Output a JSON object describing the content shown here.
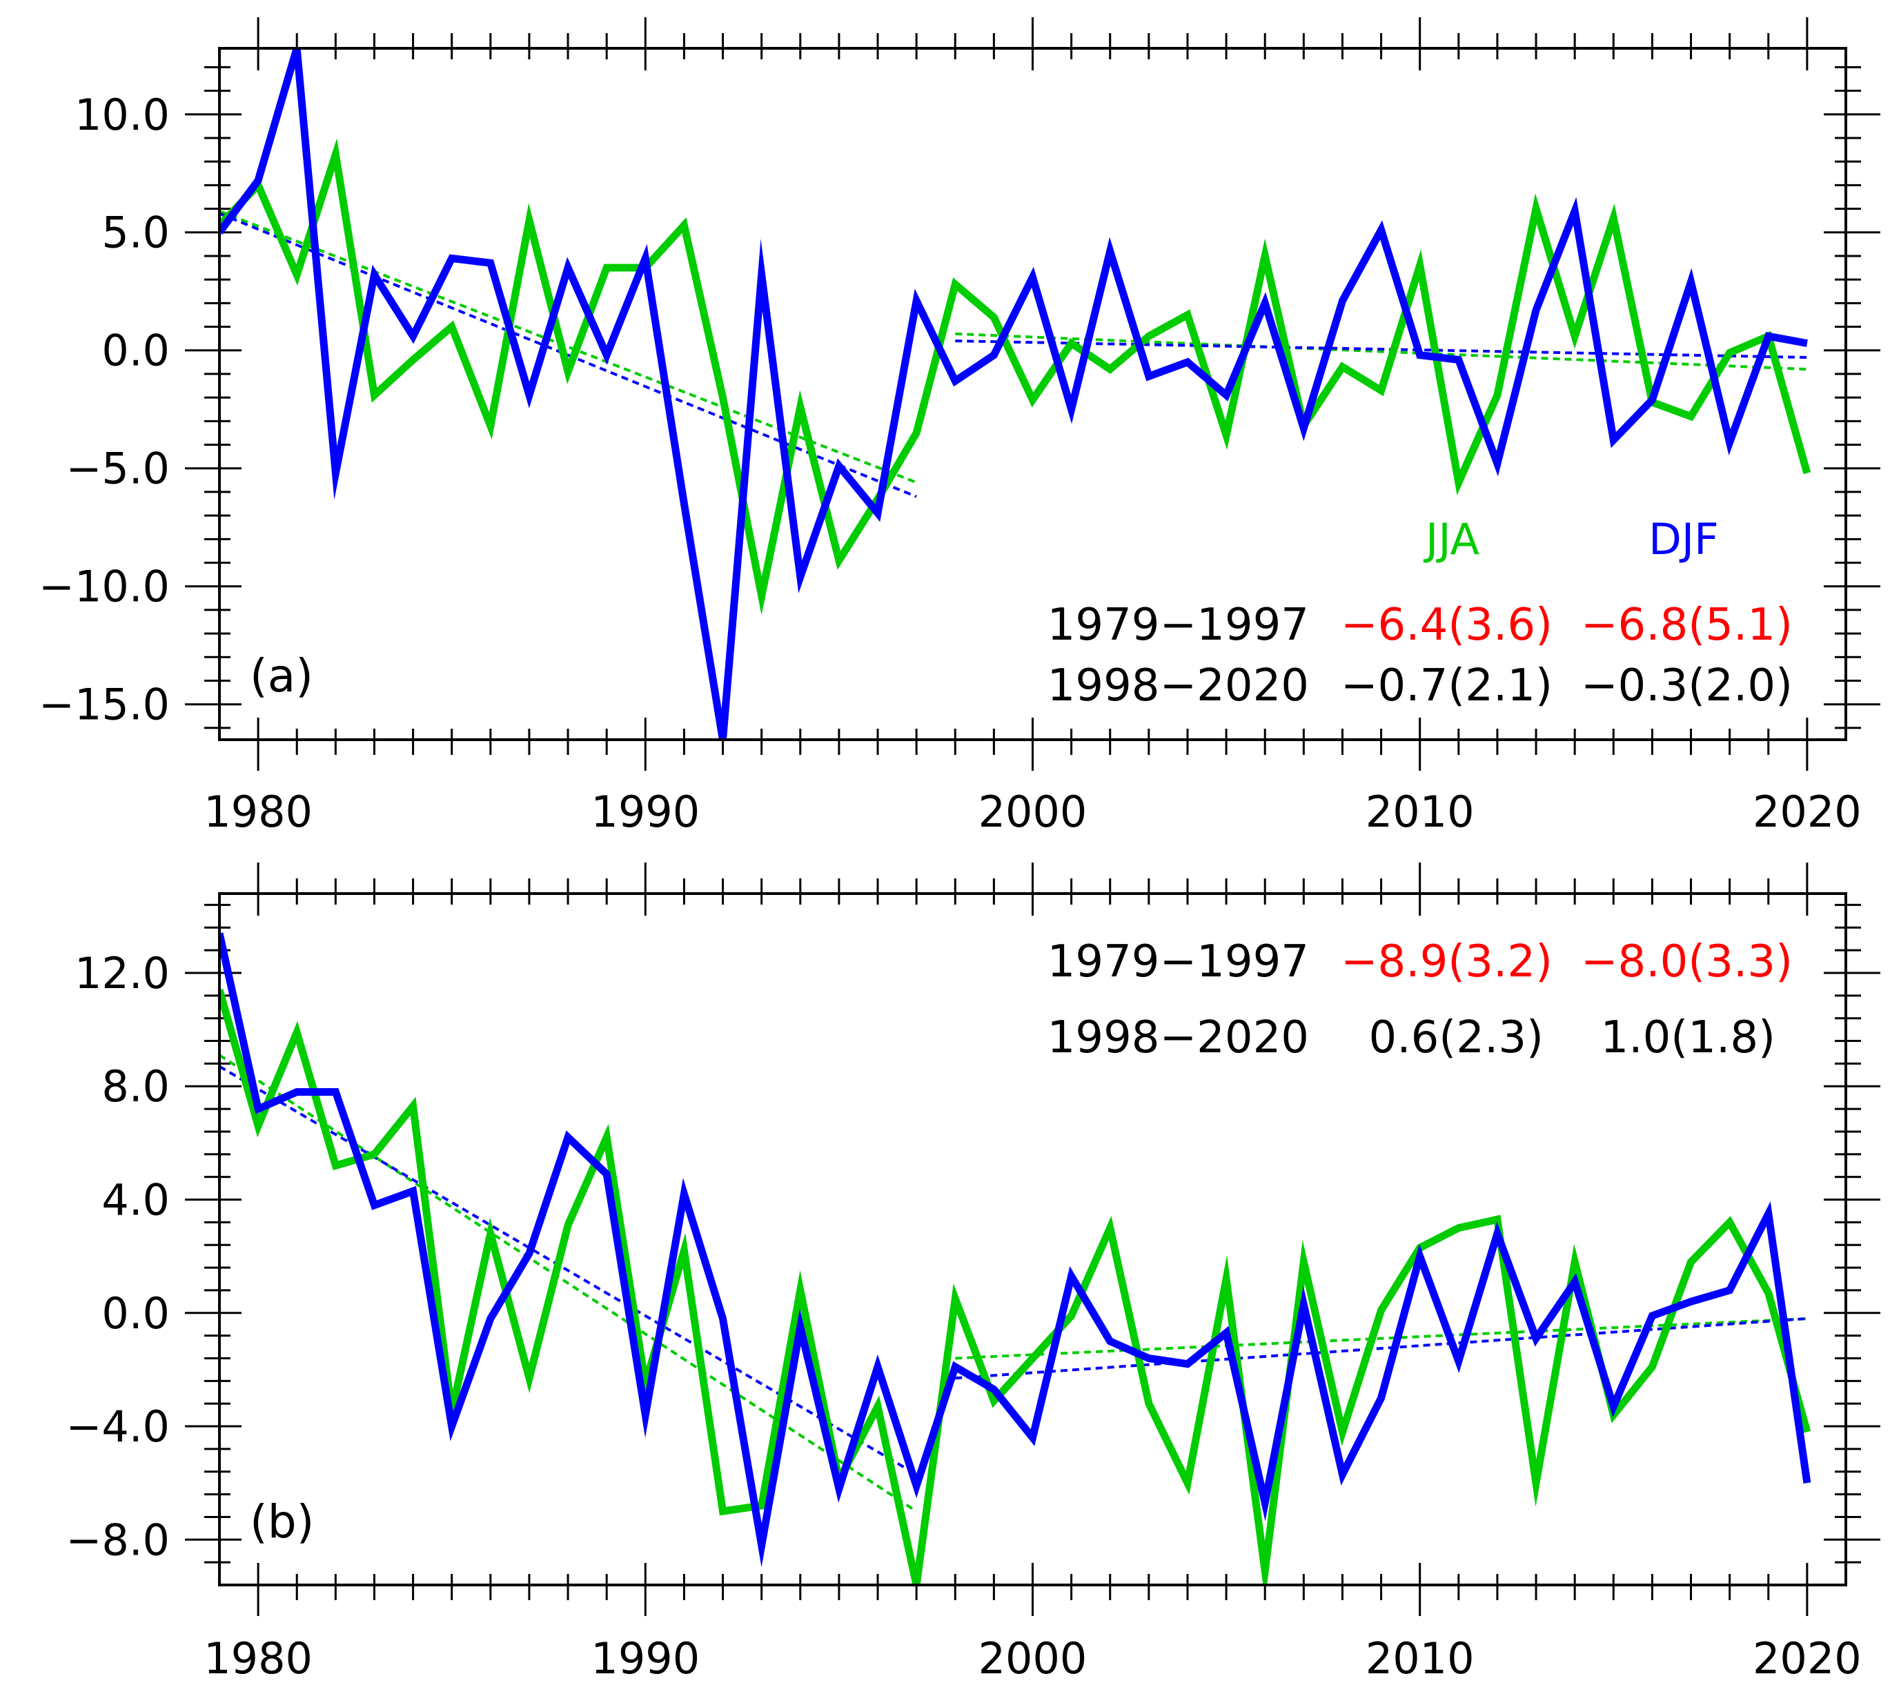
{
  "chart_data": [
    {
      "panel_label": "(a)",
      "type": "line",
      "xlim": [
        1979,
        2021
      ],
      "ylim": [
        -16.5,
        12.8
      ],
      "x_ticks": [
        1980,
        1990,
        2000,
        2010,
        2020
      ],
      "x_tick_labels": [
        "1980",
        "1990",
        "2000",
        "2010",
        "2020"
      ],
      "y_ticks": [
        10,
        5,
        0,
        -5,
        -10,
        -15
      ],
      "y_tick_labels": [
        "10.0",
        "5.0",
        "0.0",
        "−5.0",
        "−10.0",
        "−15.0"
      ],
      "x": [
        1979,
        1980,
        1981,
        1982,
        1983,
        1984,
        1985,
        1986,
        1987,
        1988,
        1989,
        1990,
        1991,
        1992,
        1993,
        1994,
        1995,
        1996,
        1997,
        1998,
        1999,
        2000,
        2001,
        2002,
        2003,
        2004,
        2005,
        2006,
        2007,
        2008,
        2009,
        2010,
        2011,
        2012,
        2013,
        2014,
        2015,
        2016,
        2017,
        2018,
        2019,
        2020
      ],
      "series": [
        {
          "name": "JJA",
          "color": "#00cc00",
          "values": [
            5.3,
            7.0,
            3.2,
            8.3,
            -1.9,
            -0.4,
            1.0,
            -3.2,
            5.5,
            -0.9,
            3.5,
            3.5,
            5.3,
            -2.0,
            -10.4,
            -2.4,
            -8.9,
            -6.3,
            -3.5,
            2.8,
            1.4,
            -2.1,
            0.3,
            -0.8,
            0.6,
            1.5,
            -3.6,
            4.0,
            -3.2,
            -0.7,
            -1.7,
            3.6,
            -5.6,
            -1.9,
            6.0,
            0.6,
            5.6,
            -2.2,
            -2.8,
            -0.1,
            0.6,
            -5.2
          ]
        },
        {
          "name": "DJF",
          "color": "#0000ff",
          "values": [
            5.0,
            7.2,
            12.8,
            -5.2,
            3.2,
            0.6,
            3.9,
            3.7,
            -1.9,
            3.5,
            -0.2,
            3.9,
            -6.5,
            -16.5,
            3.2,
            -9.6,
            -4.9,
            -6.9,
            2.1,
            -1.3,
            -0.2,
            3.1,
            -2.5,
            4.2,
            -1.1,
            -0.5,
            -1.9,
            2.0,
            -3.3,
            2.1,
            5.1,
            -0.2,
            -0.4,
            -4.8,
            1.7,
            5.9,
            -3.8,
            -2.1,
            2.9,
            -3.9,
            0.6,
            0.3
          ]
        }
      ],
      "trend_lines": [
        {
          "series": "JJA",
          "x": [
            1979,
            1997
          ],
          "y": [
            5.9,
            -5.6
          ]
        },
        {
          "series": "DJF",
          "x": [
            1979,
            1997
          ],
          "y": [
            5.8,
            -6.2
          ]
        },
        {
          "series": "JJA",
          "x": [
            1998,
            2020
          ],
          "y": [
            0.7,
            -0.8
          ]
        },
        {
          "series": "DJF",
          "x": [
            1998,
            2020
          ],
          "y": [
            0.4,
            -0.3
          ]
        }
      ],
      "legend_labels": [
        "JJA",
        "DJF"
      ],
      "table": {
        "rows": [
          {
            "period": "1979−1997",
            "jja": "−6.4(3.6)",
            "djf": "−6.8(5.1)",
            "highlight": true
          },
          {
            "period": "1998−2020",
            "jja": "−0.7(2.1)",
            "djf": "−0.3(2.0)",
            "highlight": false
          }
        ]
      }
    },
    {
      "panel_label": "(b)",
      "type": "line",
      "xlim": [
        1979,
        2021
      ],
      "ylim": [
        -9.6,
        14.8
      ],
      "x_ticks": [
        1980,
        1990,
        2000,
        2010,
        2020
      ],
      "x_tick_labels": [
        "1980",
        "1990",
        "2000",
        "2010",
        "2020"
      ],
      "y_ticks": [
        12,
        8,
        4,
        0,
        -4,
        -8
      ],
      "y_tick_labels": [
        "12.0",
        "8.0",
        "4.0",
        "0.0",
        "−4.0",
        "−8.0"
      ],
      "x": [
        1979,
        1980,
        1981,
        1982,
        1983,
        1984,
        1985,
        1986,
        1987,
        1988,
        1989,
        1990,
        1991,
        1992,
        1993,
        1994,
        1995,
        1996,
        1997,
        1998,
        1999,
        2000,
        2001,
        2002,
        2003,
        2004,
        2005,
        2006,
        2007,
        2008,
        2009,
        2010,
        2011,
        2012,
        2013,
        2014,
        2015,
        2016,
        2017,
        2018,
        2019,
        2020
      ],
      "series": [
        {
          "name": "JJA",
          "color": "#00cc00",
          "values": [
            11.4,
            6.6,
            9.9,
            5.2,
            5.6,
            7.3,
            -3.5,
            2.8,
            -2.3,
            3.1,
            6.2,
            -2.5,
            2.2,
            -7.0,
            -6.8,
            0.8,
            -5.9,
            -3.3,
            -9.6,
            0.5,
            -3.1,
            -1.6,
            -0.1,
            3.0,
            -3.2,
            -6.0,
            1.2,
            -9.1,
            1.8,
            -4.2,
            0.1,
            2.3,
            3.0,
            3.3,
            -6.0,
            1.8,
            -3.6,
            -1.9,
            1.8,
            3.2,
            0.7,
            -4.2
          ]
        },
        {
          "name": "DJF",
          "color": "#0000ff",
          "values": [
            13.4,
            7.2,
            7.8,
            7.8,
            3.8,
            4.3,
            -4.0,
            -0.2,
            2.1,
            6.2,
            4.9,
            -3.6,
            4.2,
            -0.2,
            -8.2,
            -0.5,
            -6.2,
            -1.9,
            -6.1,
            -1.9,
            -2.7,
            -4.4,
            1.3,
            -1.0,
            -1.6,
            -1.8,
            -0.7,
            -6.7,
            0.3,
            -5.7,
            -3.0,
            2.0,
            -1.7,
            2.8,
            -0.9,
            1.1,
            -3.3,
            -0.1,
            0.4,
            0.8,
            3.5,
            -6.0
          ]
        }
      ],
      "trend_lines": [
        {
          "series": "JJA",
          "x": [
            1979,
            1997
          ],
          "y": [
            9.1,
            -7.0
          ]
        },
        {
          "series": "DJF",
          "x": [
            1979,
            1997
          ],
          "y": [
            8.7,
            -5.7
          ]
        },
        {
          "series": "JJA",
          "x": [
            1998,
            2020
          ],
          "y": [
            -1.6,
            -0.2
          ]
        },
        {
          "series": "DJF",
          "x": [
            1998,
            2020
          ],
          "y": [
            -2.3,
            -0.2
          ]
        }
      ],
      "legend_labels": [],
      "table": {
        "rows": [
          {
            "period": "1979−1997",
            "jja": "−8.9(3.2)",
            "djf": "−8.0(3.3)",
            "highlight": true
          },
          {
            "period": "1998−2020",
            "jja": "0.6(2.3)",
            "djf": "1.0(1.8)",
            "highlight": false
          }
        ]
      }
    }
  ],
  "colors": {
    "jja": "#00cc00",
    "djf": "#0000ff",
    "significant": "#ff0000",
    "text": "#000000"
  }
}
